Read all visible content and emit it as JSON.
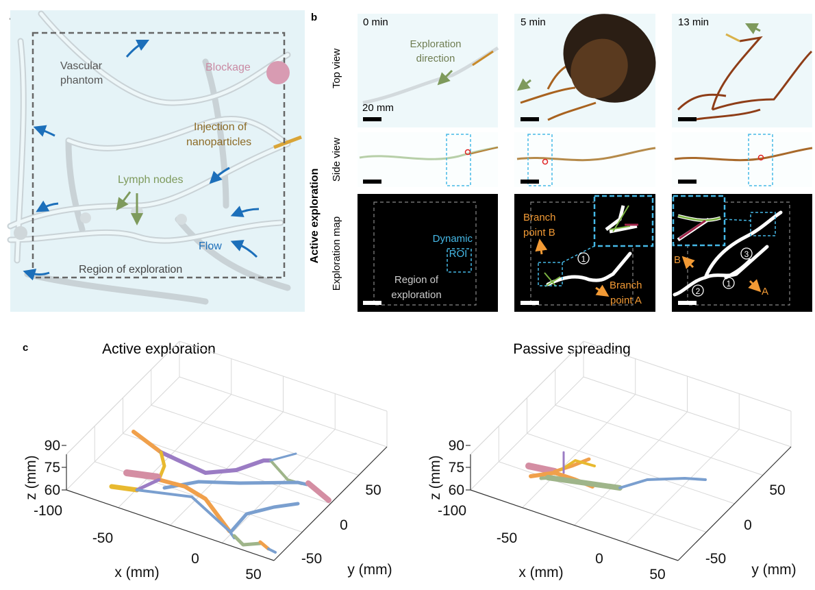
{
  "panel_a": {
    "label": "a",
    "vascular_phantom": [
      "Vascular",
      "phantom"
    ],
    "blockage": "Blockage",
    "injection": [
      "Injection of",
      "nanoparticles"
    ],
    "lymph_nodes": "Lymph nodes",
    "flow": "Flow",
    "region": "Region of exploration",
    "colors": {
      "blockage": "#c98aa3",
      "injection": "#8c6a25",
      "lymph": "#7e9a5c",
      "flow": "#1c6fba"
    }
  },
  "panel_b": {
    "label": "b",
    "group_label": "Active exploration",
    "rows": [
      "Top view",
      "Side view",
      "Exploration map"
    ],
    "times": [
      "0 min",
      "5 min",
      "13 min"
    ],
    "scale_label": "20 mm",
    "exploration_direction": [
      "Exploration",
      "direction"
    ],
    "dynamic_roi": [
      "Dynamic",
      "ROI"
    ],
    "region": [
      "Region of",
      "exploration"
    ],
    "branch_b": [
      "Branch",
      "point B"
    ],
    "branch_a": [
      "Branch",
      "point A"
    ],
    "short_b": "B",
    "short_a": "A",
    "markers": [
      "1",
      "2",
      "3"
    ],
    "colors": {
      "roi": "#45b8e6",
      "branch": "#f29a35"
    }
  },
  "panel_c": {
    "label": "c"
  },
  "chart_data": [
    {
      "type": "line3d",
      "title": "Active exploration",
      "xlabel": "x (mm)",
      "ylabel": "y (mm)",
      "zlabel": "z (mm)",
      "xticks": [
        "-100",
        "-50",
        "0",
        "50"
      ],
      "yticks": [
        "-50",
        "0",
        "50"
      ],
      "zticks": [
        "60",
        "75",
        "90"
      ],
      "xlim": [
        -100,
        50
      ],
      "ylim": [
        -75,
        75
      ],
      "zlim": [
        60,
        90
      ],
      "series_colors": [
        "#7a9fcf",
        "#f0a04b",
        "#9b7cc4",
        "#9fb58a",
        "#d48ea3",
        "#e8b92f"
      ]
    },
    {
      "type": "line3d",
      "title": "Passive spreading",
      "xlabel": "x (mm)",
      "ylabel": "y (mm)",
      "zlabel": "z (mm)",
      "xticks": [
        "-100",
        "-50",
        "0",
        "50"
      ],
      "yticks": [
        "-50",
        "0",
        "50"
      ],
      "zticks": [
        "60",
        "75",
        "90"
      ],
      "xlim": [
        -100,
        50
      ],
      "ylim": [
        -75,
        75
      ],
      "zlim": [
        60,
        90
      ],
      "series_colors": [
        "#7a9fcf",
        "#f0a04b",
        "#9b7cc4",
        "#9fb58a",
        "#d48ea3",
        "#e8b92f"
      ]
    }
  ]
}
